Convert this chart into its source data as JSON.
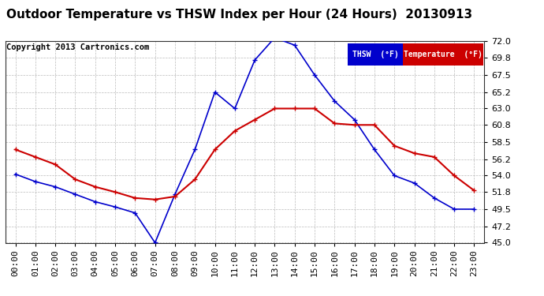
{
  "title": "Outdoor Temperature vs THSW Index per Hour (24 Hours)  20130913",
  "copyright": "Copyright 2013 Cartronics.com",
  "background_color": "#ffffff",
  "plot_background": "#ffffff",
  "grid_color": "#bbbbbb",
  "ylim": [
    45.0,
    72.0
  ],
  "yticks": [
    45.0,
    47.2,
    49.5,
    51.8,
    54.0,
    56.2,
    58.5,
    60.8,
    63.0,
    65.2,
    67.5,
    69.8,
    72.0
  ],
  "hours": [
    0,
    1,
    2,
    3,
    4,
    5,
    6,
    7,
    8,
    9,
    10,
    11,
    12,
    13,
    14,
    15,
    16,
    17,
    18,
    19,
    20,
    21,
    22,
    23
  ],
  "thsw": [
    54.2,
    53.2,
    52.5,
    51.5,
    50.5,
    49.8,
    49.0,
    45.0,
    51.5,
    57.5,
    65.2,
    63.0,
    69.5,
    72.5,
    71.5,
    67.5,
    64.0,
    61.5,
    57.5,
    54.0,
    53.0,
    51.0,
    49.5,
    49.5
  ],
  "temperature": [
    57.5,
    56.5,
    55.5,
    53.5,
    52.5,
    51.8,
    51.0,
    50.8,
    51.2,
    53.5,
    57.5,
    60.0,
    61.5,
    63.0,
    63.0,
    63.0,
    61.0,
    60.8,
    60.8,
    58.0,
    57.0,
    56.5,
    54.0,
    52.0
  ],
  "thsw_color": "#0000cc",
  "temp_color": "#cc0000",
  "legend_thsw_bg": "#0000cc",
  "legend_temp_bg": "#cc0000",
  "title_fontsize": 11,
  "tick_fontsize": 8,
  "copyright_fontsize": 7.5
}
